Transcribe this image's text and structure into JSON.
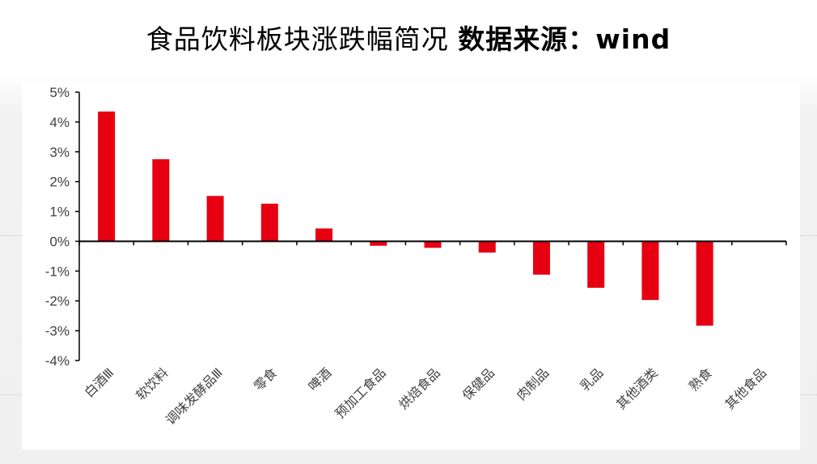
{
  "page": {
    "title": "食品饮料板块涨跌幅简况",
    "source": "数据来源：wind"
  },
  "colors": {
    "bar": "#e60012",
    "axis": "#000000",
    "tick_text": "#404040"
  },
  "chart_data": {
    "type": "bar",
    "title": "",
    "xlabel": "",
    "ylabel": "",
    "categories": [
      "白酒Ⅲ",
      "软饮料",
      "调味发酵品Ⅲ",
      "零食",
      "啤酒",
      "预加工食品",
      "烘焙食品",
      "保健品",
      "肉制品",
      "乳品",
      "其他酒类",
      "熟食",
      "其他食品"
    ],
    "values": [
      4.35,
      2.75,
      1.52,
      1.26,
      0.43,
      -0.15,
      -0.22,
      -0.38,
      -1.12,
      -1.56,
      -1.97,
      -2.83,
      0
    ],
    "ylim": [
      -4,
      5
    ],
    "yticks": [
      5,
      4,
      3,
      2,
      1,
      0,
      -1,
      -2,
      -3,
      -4
    ],
    "ytick_labels": [
      "5%",
      "4%",
      "3%",
      "2%",
      "1%",
      "0%",
      "-1%",
      "-2%",
      "-3%",
      "-4%"
    ],
    "grid": false,
    "legend": "none"
  }
}
